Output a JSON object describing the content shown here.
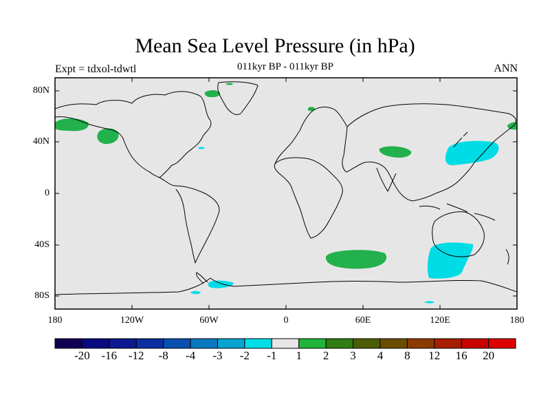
{
  "title": "Mean Sea Level Pressure (in hPa)",
  "subtitle_left": "Expt = tdxol-tdwtl",
  "subtitle_center": "011kyr BP - 011kyr BP",
  "subtitle_right": "ANN",
  "lat_ticks": [
    "80N",
    "40N",
    "0",
    "40S",
    "80S"
  ],
  "lon_ticks": [
    "180",
    "120W",
    "60W",
    "0",
    "60E",
    "120E",
    "180"
  ],
  "colorbar": {
    "labels": [
      "-20",
      "-16",
      "-12",
      "-8",
      "-4",
      "-3",
      "-2",
      "-1",
      "1",
      "2",
      "3",
      "4",
      "8",
      "12",
      "16",
      "20"
    ],
    "colors": [
      "#120055",
      "#0a0a80",
      "#0b1890",
      "#0a2fa0",
      "#0a4fb0",
      "#0a78c0",
      "#08a3d0",
      "#00dde6",
      "#e6e6e6",
      "#1fb53a",
      "#2f7d12",
      "#4b5e05",
      "#6b4d00",
      "#8c3b00",
      "#a81e00",
      "#c80000",
      "#dd0000"
    ]
  },
  "colors": {
    "background": "#e6e6e6",
    "positive_small": "#22b14c",
    "negative_small": "#00dce6"
  },
  "chart_data": {
    "type": "map",
    "title": "Mean Sea Level Pressure (in hPa)",
    "experiment": "tdxol-tdwtl",
    "period": "011kyr BP - 011kyr BP",
    "season": "ANN",
    "lon_range": [
      -180,
      180
    ],
    "lat_range": [
      -90,
      90
    ],
    "anomaly_regions": [
      {
        "name": "north-pacific-east",
        "level": "1 to 2",
        "center_lon": -170,
        "center_lat": 53
      },
      {
        "name": "gulf-of-alaska",
        "level": "1 to 2",
        "center_lon": -143,
        "center_lat": 45
      },
      {
        "name": "greenland",
        "level": "1 to 2",
        "center_lon": -50,
        "center_lat": 77
      },
      {
        "name": "tibetan-plateau",
        "level": "1 to 2",
        "center_lon": 88,
        "center_lat": 33
      },
      {
        "name": "kamchatka",
        "level": "1 to 2",
        "center_lon": 178,
        "center_lat": 53
      },
      {
        "name": "south-indian-ocean",
        "level": "1 to 2",
        "center_lon": 57,
        "center_lat": -50
      },
      {
        "name": "japan-northwest-pacific",
        "level": "-2 to -1",
        "center_lon": 140,
        "center_lat": 33
      },
      {
        "name": "south-australia",
        "level": "-2 to -1",
        "center_lon": 120,
        "center_lat": -48
      },
      {
        "name": "weddell-sea",
        "level": "-2 to -1",
        "center_lon": -50,
        "center_lat": -69
      }
    ]
  }
}
